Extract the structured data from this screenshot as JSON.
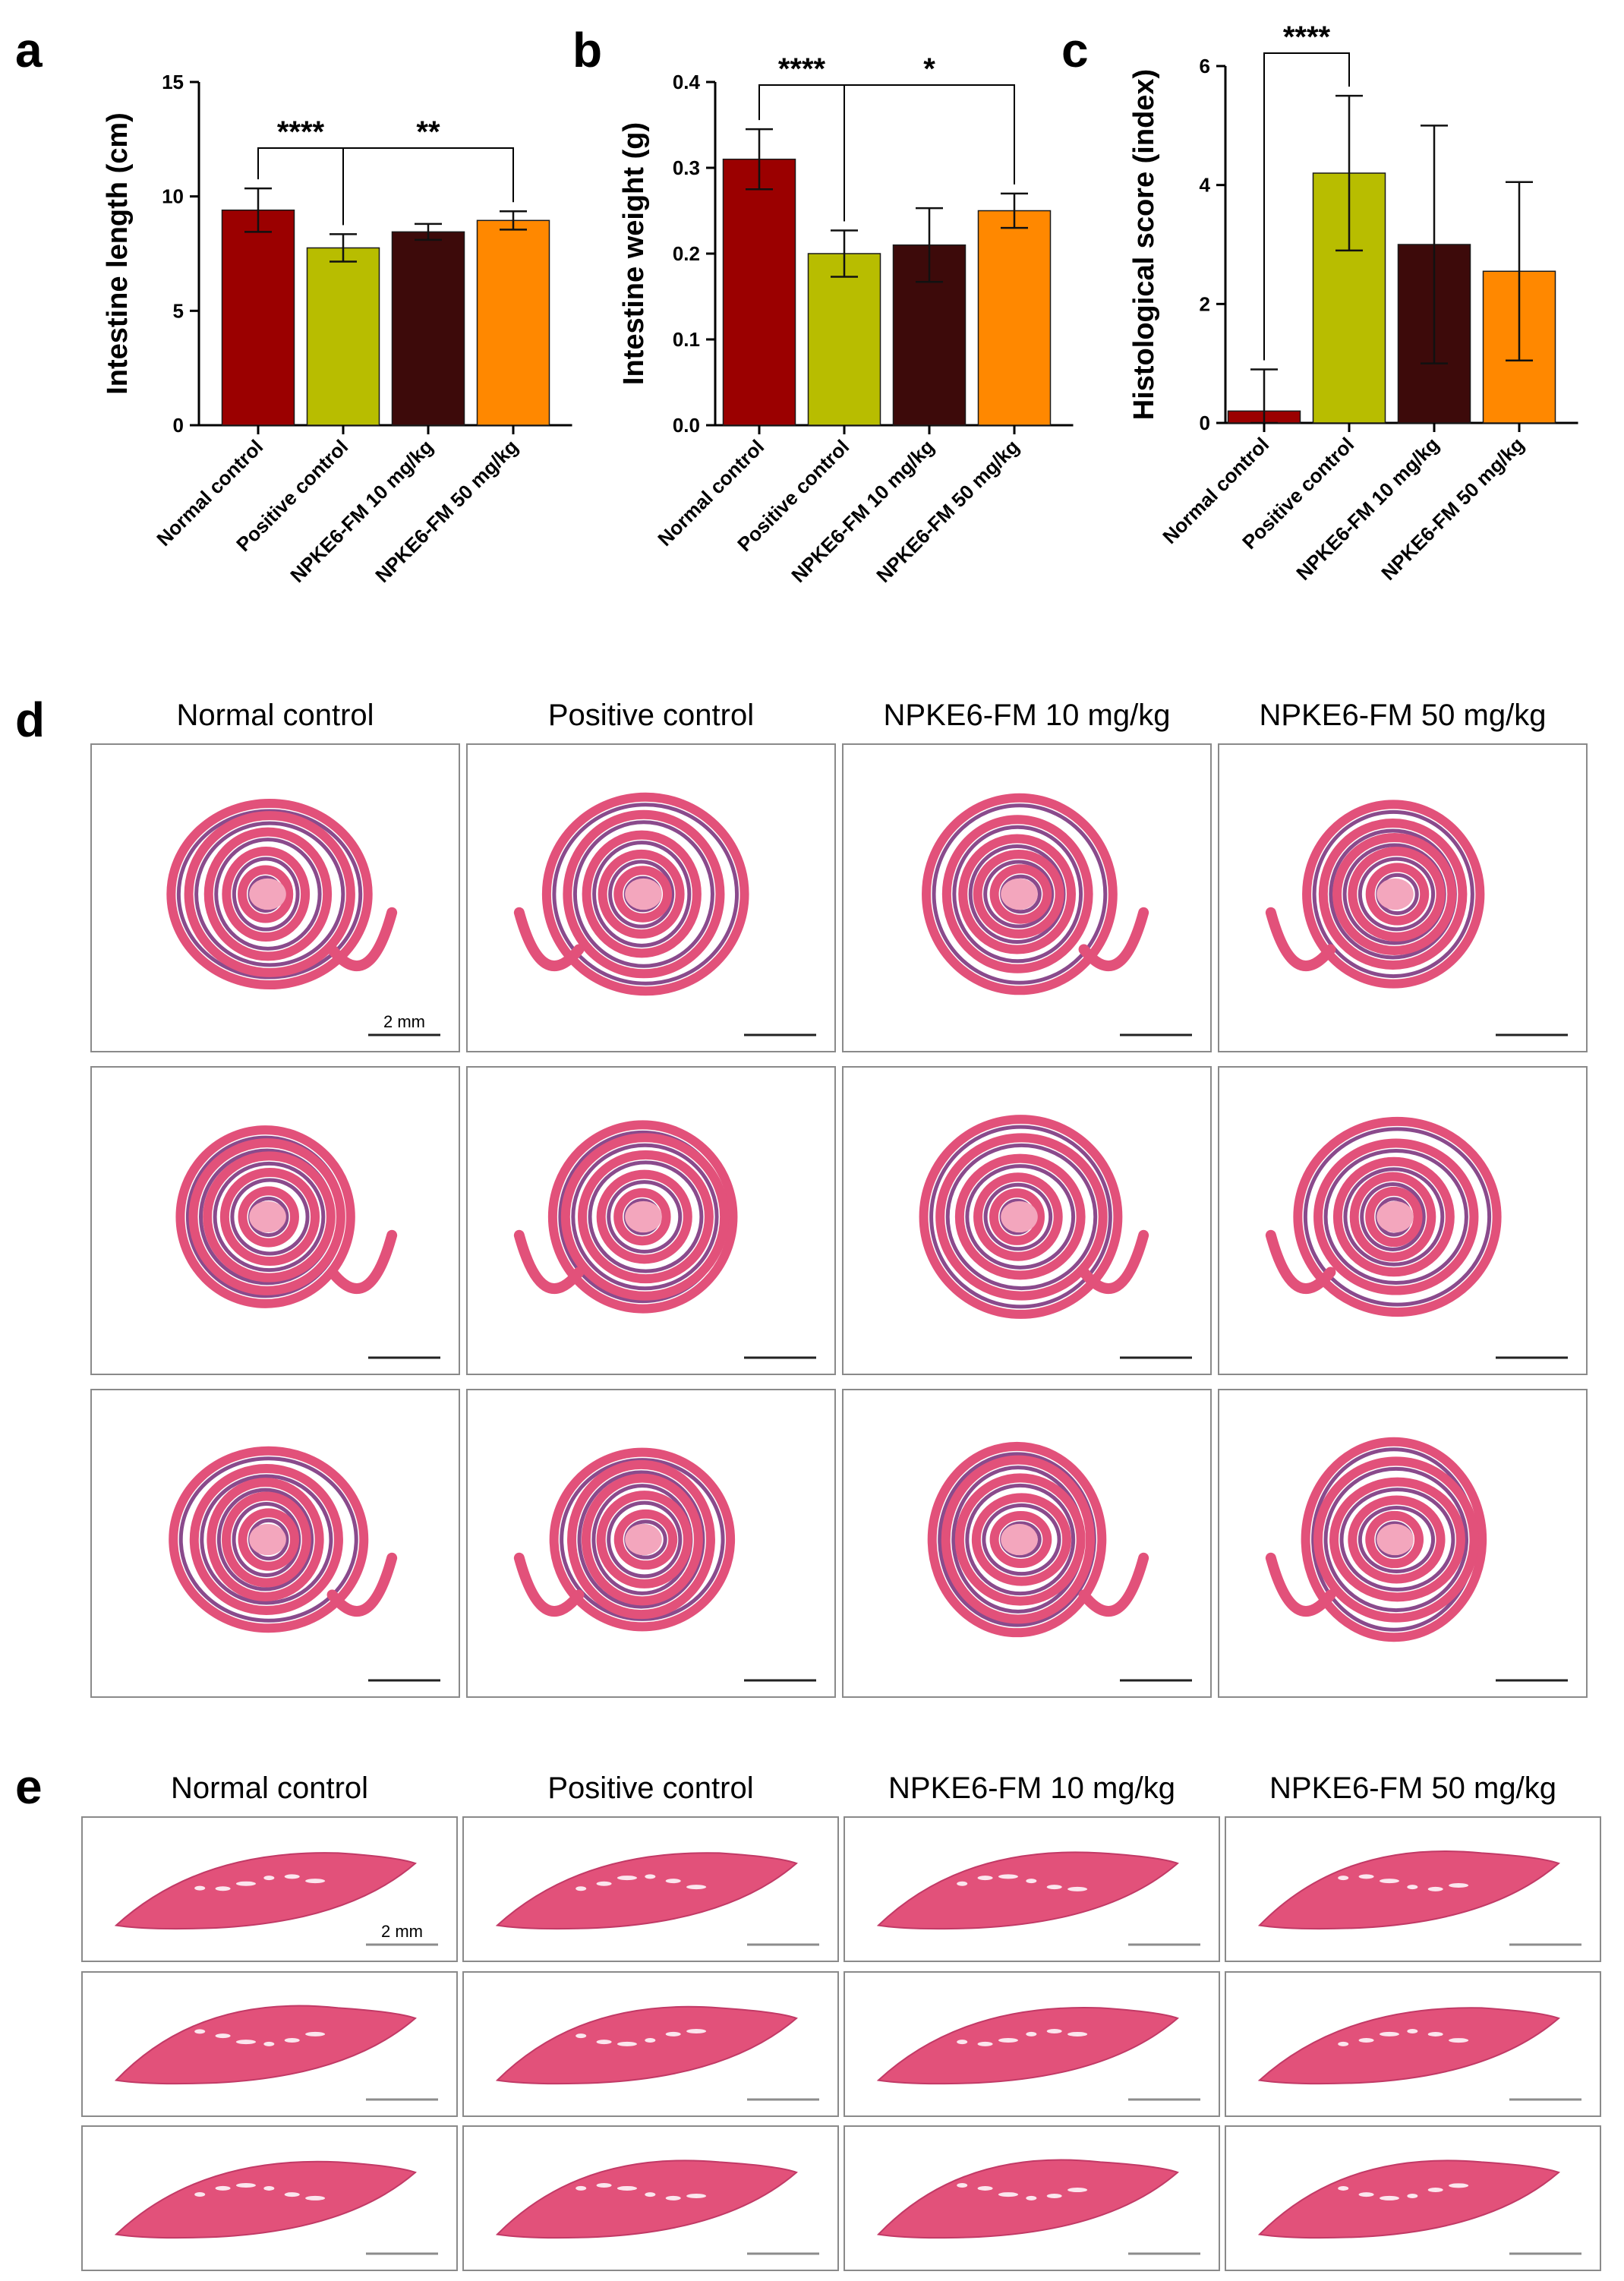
{
  "chart_data": [
    {
      "panel": "a",
      "type": "bar",
      "ylabel": "Intestine length (cm)",
      "ylim": [
        0,
        15
      ],
      "yticks": [
        "0",
        "5",
        "10",
        "15"
      ],
      "categories": [
        "Normal control",
        "Positive control",
        "NPKE6-FM 10 mg/kg",
        "NPKE6-FM 50 mg/kg"
      ],
      "values": [
        9.4,
        7.75,
        8.45,
        8.95
      ],
      "errors": [
        0.95,
        0.6,
        0.35,
        0.4
      ],
      "colors": [
        "#9b0000",
        "#b8bd00",
        "#3d0a0a",
        "#ff8800"
      ],
      "significance": [
        {
          "from": 0,
          "to": 1,
          "label": "****"
        },
        {
          "from": 1,
          "to": 3,
          "label": "**"
        }
      ]
    },
    {
      "panel": "b",
      "type": "bar",
      "ylabel": "Intestine weight (g)",
      "ylim": [
        0,
        0.4
      ],
      "yticks": [
        "0.0",
        "0.1",
        "0.2",
        "0.3",
        "0.4"
      ],
      "categories": [
        "Normal control",
        "Positive control",
        "NPKE6-FM 10 mg/kg",
        "NPKE6-FM 50 mg/kg"
      ],
      "values": [
        0.31,
        0.2,
        0.21,
        0.25
      ],
      "errors": [
        0.035,
        0.027,
        0.043,
        0.02
      ],
      "colors": [
        "#9b0000",
        "#b8bd00",
        "#3d0a0a",
        "#ff8800"
      ],
      "significance": [
        {
          "from": 0,
          "to": 1,
          "label": "****"
        },
        {
          "from": 1,
          "to": 3,
          "label": "*"
        }
      ]
    },
    {
      "panel": "c",
      "type": "bar",
      "ylabel": "Histological score (index)",
      "ylim": [
        0,
        6
      ],
      "yticks": [
        "0",
        "2",
        "4",
        "6"
      ],
      "categories": [
        "Normal control",
        "Positive control",
        "NPKE6-FM 10 mg/kg",
        "NPKE6-FM 50 mg/kg"
      ],
      "values": [
        0.2,
        4.2,
        3.0,
        2.55
      ],
      "errors": [
        0.7,
        1.3,
        2.0,
        1.5
      ],
      "colors": [
        "#9b0000",
        "#b8bd00",
        "#3d0a0a",
        "#ff8800"
      ],
      "significance": [
        {
          "from": 0,
          "to": 1,
          "label": "****"
        }
      ]
    }
  ],
  "histology": [
    {
      "panel": "d",
      "tissue": "intestine",
      "columns": [
        "Normal control",
        "Positive control",
        "NPKE6-FM 10 mg/kg",
        "NPKE6-FM 50 mg/kg"
      ],
      "rows": 3,
      "scale_bar_label": "2 mm"
    },
    {
      "panel": "e",
      "tissue": "liver",
      "columns": [
        "Normal control",
        "Positive control",
        "NPKE6-FM 10 mg/kg",
        "NPKE6-FM 50 mg/kg"
      ],
      "rows": 3,
      "scale_bar_label": "2 mm"
    }
  ],
  "colors": {
    "tissue_pink": "#e2517a",
    "tissue_light": "#f3a6bd",
    "tissue_purple": "#8a4a8c",
    "panel_border": "#8a8a8a",
    "scale_bar_d": "#222222",
    "scale_bar_e": "#8c8c8c"
  }
}
